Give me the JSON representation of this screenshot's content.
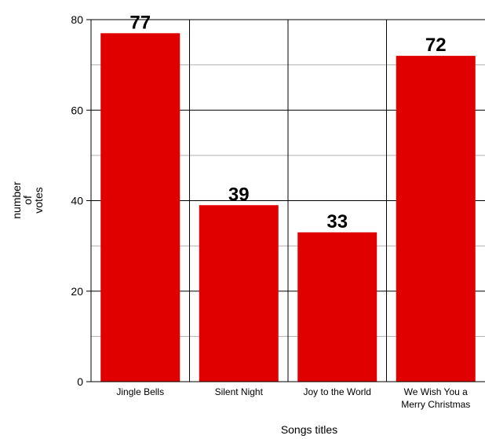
{
  "chart_data": {
    "type": "bar",
    "title": "",
    "xlabel": "Songs titles",
    "ylabel": [
      "number",
      "of",
      "votes"
    ],
    "categories": [
      [
        "Jingle Bells"
      ],
      [
        "Silent Night"
      ],
      [
        "Joy to the World"
      ],
      [
        "We Wish You a",
        "Merry Christmas"
      ]
    ],
    "values": [
      77,
      39,
      33,
      72
    ],
    "value_labels": [
      "77",
      "39",
      "33",
      "72"
    ],
    "ylim": [
      0,
      80
    ],
    "yticks": [
      0,
      20,
      40,
      60,
      80
    ],
    "ytick_labels": [
      "0",
      "20",
      "40",
      "60",
      "80"
    ],
    "minor_gridlines": [
      10,
      30,
      50,
      70
    ],
    "grid": true,
    "bar_color": "#e00000",
    "major_grid_color": "#000000",
    "minor_grid_color": "#b0b0b0"
  }
}
